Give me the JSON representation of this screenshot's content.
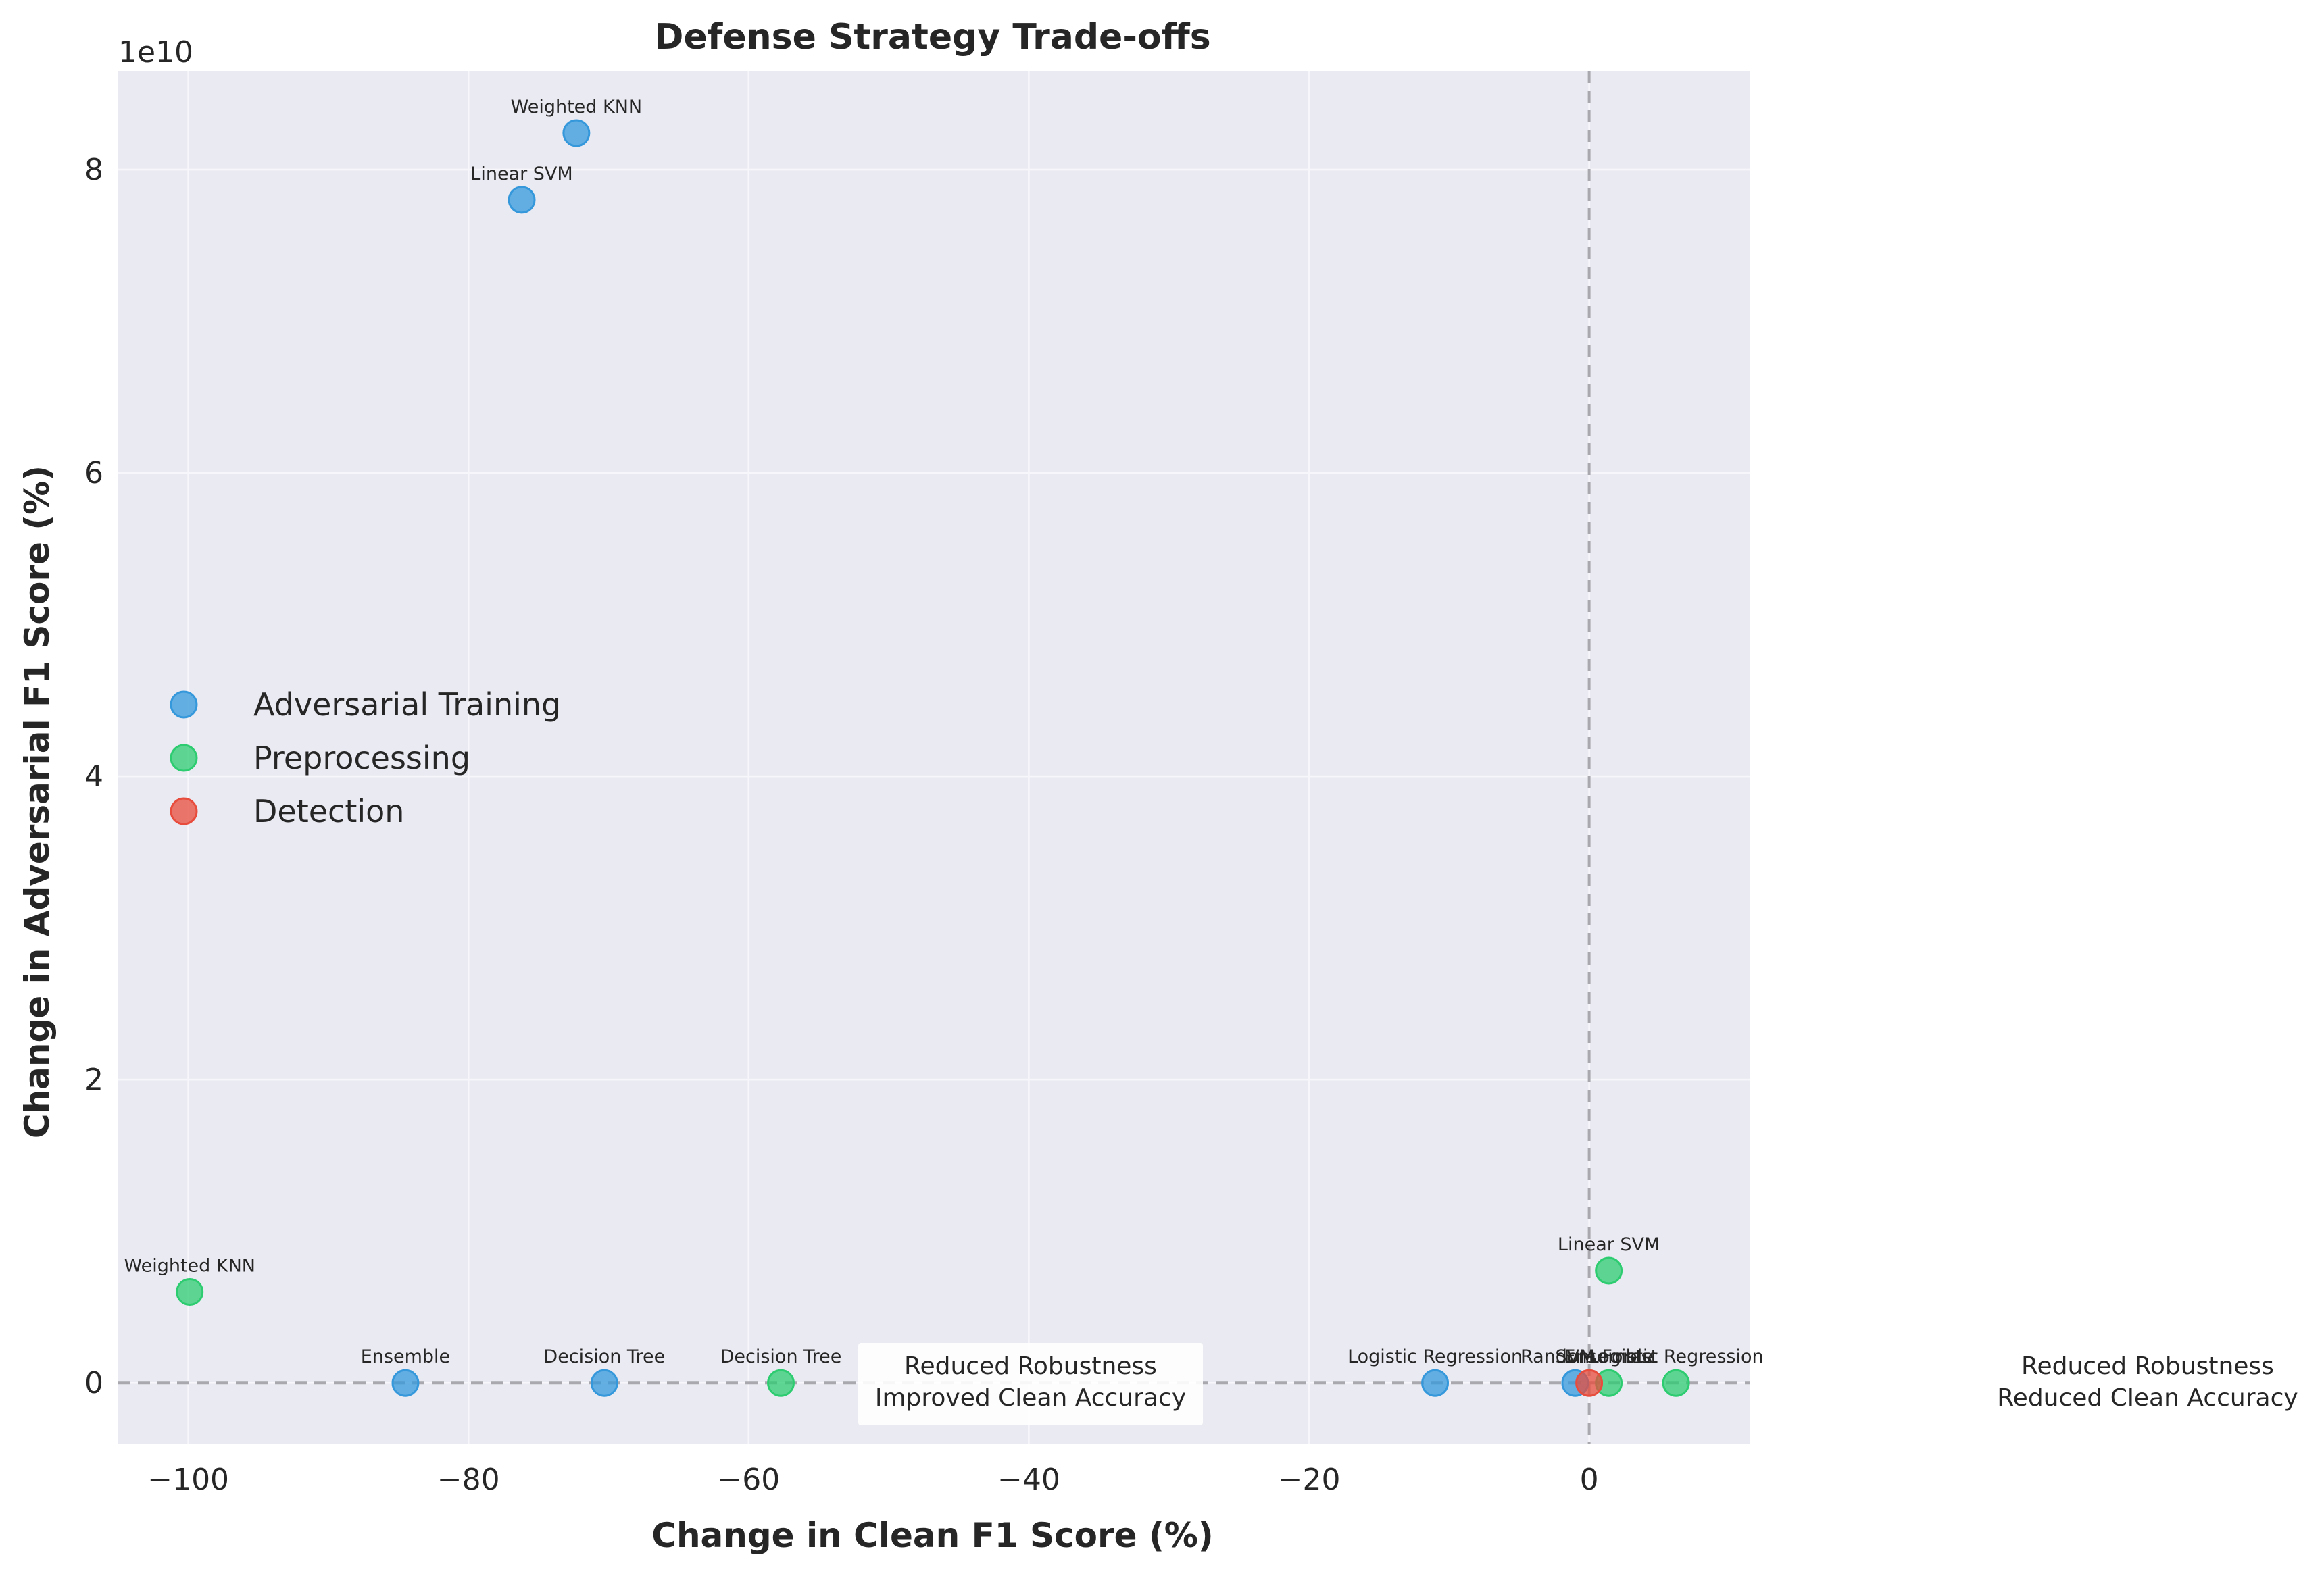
{
  "chart_data": {
    "type": "scatter",
    "title": "Defense Strategy Trade-offs",
    "xlabel": "Change in Clean F1 Score (%)",
    "ylabel": "Change in Adversarial F1 Score (%)",
    "y_multiplier_label": "1e10",
    "xlim": [
      -105,
      11.5
    ],
    "ylim": [
      -0.4,
      8.65
    ],
    "x_ticks": [
      -100,
      -80,
      -60,
      -40,
      -20,
      0
    ],
    "x_tick_labels": [
      "−100",
      "−80",
      "−60",
      "−40",
      "−20",
      "0"
    ],
    "y_ticks": [
      0,
      2,
      4,
      6,
      8
    ],
    "y_tick_labels": [
      "0",
      "2",
      "4",
      "6",
      "8"
    ],
    "grid": true,
    "reference_lines": {
      "x": 0,
      "y": 0,
      "style": "dashed"
    },
    "legend_position": "center-left",
    "series": [
      {
        "name": "Adversarial Training",
        "color": "#3498db",
        "points": [
          {
            "x": -72.3,
            "y": 8.24,
            "label": "Weighted KNN"
          },
          {
            "x": -76.2,
            "y": 7.8,
            "label": "Linear SVM"
          },
          {
            "x": -84.5,
            "y": 0.0,
            "label": "Ensemble"
          },
          {
            "x": -70.3,
            "y": 0.0,
            "label": "Decision Tree"
          },
          {
            "x": -11.0,
            "y": 0.0,
            "label": "Logistic Regression"
          },
          {
            "x": -1.0,
            "y": 0.0,
            "label": "SVM"
          }
        ]
      },
      {
        "name": "Preprocessing",
        "color": "#2ecc71",
        "points": [
          {
            "x": -99.9,
            "y": 0.6,
            "label": "Weighted KNN"
          },
          {
            "x": -57.7,
            "y": 0.0,
            "label": "Decision Tree"
          },
          {
            "x": 1.4,
            "y": 0.74,
            "label": "Linear SVM"
          },
          {
            "x": 6.2,
            "y": 0.0,
            "label": "Logistic Regression"
          },
          {
            "x": 1.4,
            "y": 0.0,
            "label": "Ensemble"
          }
        ]
      },
      {
        "name": "Detection",
        "color": "#e74c3c",
        "points": [
          {
            "x": 0.0,
            "y": 0.0,
            "label": "Random Forest"
          }
        ]
      }
    ],
    "annotations": [
      {
        "lines": [
          "Reduced Robustness",
          "Improved Clean Accuracy"
        ],
        "boxed": true
      },
      {
        "lines": [
          "Reduced Robustness",
          "Reduced Clean Accuracy"
        ],
        "boxed": false
      }
    ]
  }
}
